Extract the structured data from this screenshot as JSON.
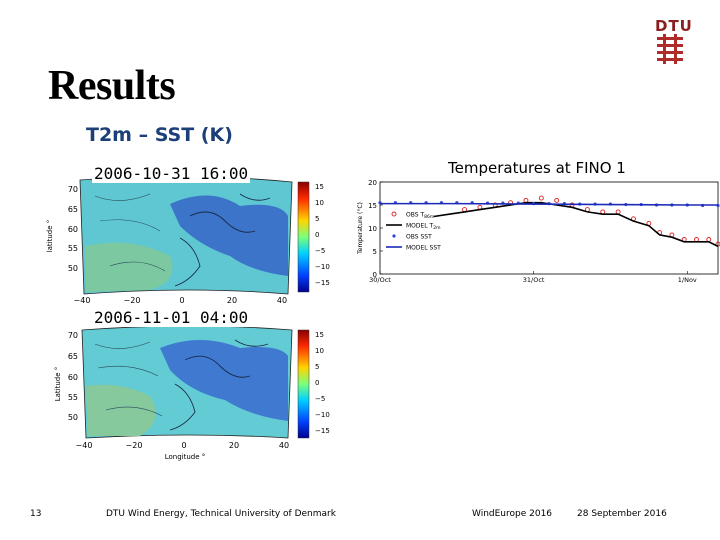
{
  "slide": {
    "title": "Results",
    "subtitle": "T2m – SST (K)",
    "logo_text": "DTU"
  },
  "maps": [
    {
      "timestamp": "2006-10-31 16:00",
      "ylabel": "latitude °",
      "xlabel": "",
      "lat_ticks": [
        "70",
        "65",
        "60",
        "55",
        "50"
      ],
      "lon_ticks": [
        "−40",
        "−20",
        "0",
        "20",
        "40"
      ],
      "colorbar_ticks": [
        "15",
        "10",
        "5",
        "0",
        "−5",
        "−10",
        "−15"
      ]
    },
    {
      "timestamp": "2006-11-01 04:00",
      "ylabel": "Latitude °",
      "xlabel": "Longitude °",
      "lat_ticks": [
        "70",
        "65",
        "60",
        "55",
        "50"
      ],
      "lon_ticks": [
        "−40",
        "−20",
        "0",
        "20",
        "40"
      ],
      "colorbar_ticks": [
        "15",
        "10",
        "5",
        "0",
        "−5",
        "−10",
        "−15"
      ]
    }
  ],
  "chart_data": {
    "type": "line",
    "title": "Temperatures at FINO 1",
    "ylabel": "Temperature (°C)",
    "xlabel": "",
    "ylim": [
      0,
      20
    ],
    "xlim": [
      0,
      2.2
    ],
    "yticks": [
      0,
      5,
      10,
      15,
      20
    ],
    "xticks": [
      {
        "x": 0,
        "label": "30/Oct"
      },
      {
        "x": 1,
        "label": "31/Oct"
      },
      {
        "x": 2,
        "label": "1/Nov"
      }
    ],
    "legend_position": "bottom-left",
    "series": [
      {
        "name": "OBS T",
        "subscript": "86m",
        "style": "markers",
        "color": "#dd2222",
        "x": [
          0.55,
          0.65,
          0.75,
          0.85,
          0.95,
          1.05,
          1.15,
          1.25,
          1.35,
          1.45,
          1.55,
          1.65,
          1.75,
          1.82,
          1.9,
          1.98,
          2.06,
          2.14,
          2.2
        ],
        "y": [
          14,
          14.5,
          15,
          15.5,
          16,
          16.5,
          16,
          15,
          14,
          13.5,
          13.5,
          12,
          11,
          9,
          8.5,
          7.5,
          7.5,
          7.5,
          6.5
        ]
      },
      {
        "name": "MODEL T",
        "subscript": "2m",
        "style": "line",
        "color": "#000000",
        "x": [
          0.35,
          0.45,
          0.55,
          0.65,
          0.75,
          0.85,
          0.95,
          1.05,
          1.15,
          1.25,
          1.35,
          1.45,
          1.55,
          1.65,
          1.75,
          1.82,
          1.9,
          1.98,
          2.06,
          2.14,
          2.2
        ],
        "y": [
          12.5,
          13,
          13.5,
          14,
          14.5,
          15,
          15.5,
          15.5,
          15,
          14.5,
          13.5,
          13,
          13,
          11.5,
          10.5,
          8.5,
          8,
          7,
          7,
          7,
          6
        ]
      },
      {
        "name": "OBS SST",
        "subscript": "",
        "style": "markers",
        "color": "#3344dd",
        "x": [
          0,
          0.1,
          0.2,
          0.3,
          0.4,
          0.5,
          0.6,
          0.7,
          0.8,
          0.9,
          1.0,
          1.1,
          1.2,
          1.3,
          1.4,
          1.5,
          1.6,
          1.7,
          1.8,
          1.9,
          2.0,
          2.1,
          2.2
        ],
        "y": [
          15.5,
          15.5,
          15.5,
          15.5,
          15.5,
          15.5,
          15.5,
          15.4,
          15.4,
          15.4,
          15.3,
          15.3,
          15.3,
          15.2,
          15.2,
          15.2,
          15.1,
          15.1,
          15.0,
          15.0,
          15.0,
          14.9,
          14.9
        ]
      },
      {
        "name": "MODEL SST",
        "subscript": "",
        "style": "line",
        "color": "#1a2bb8",
        "x": [
          0,
          0.5,
          1.0,
          1.5,
          2.0,
          2.2
        ],
        "y": [
          15.3,
          15.3,
          15.2,
          15.1,
          15.0,
          15.0
        ]
      }
    ]
  },
  "footer": {
    "page": "13",
    "org": "DTU Wind Energy, Technical University of Denmark",
    "conference": "WindEurope 2016",
    "date": "28 September 2016"
  }
}
